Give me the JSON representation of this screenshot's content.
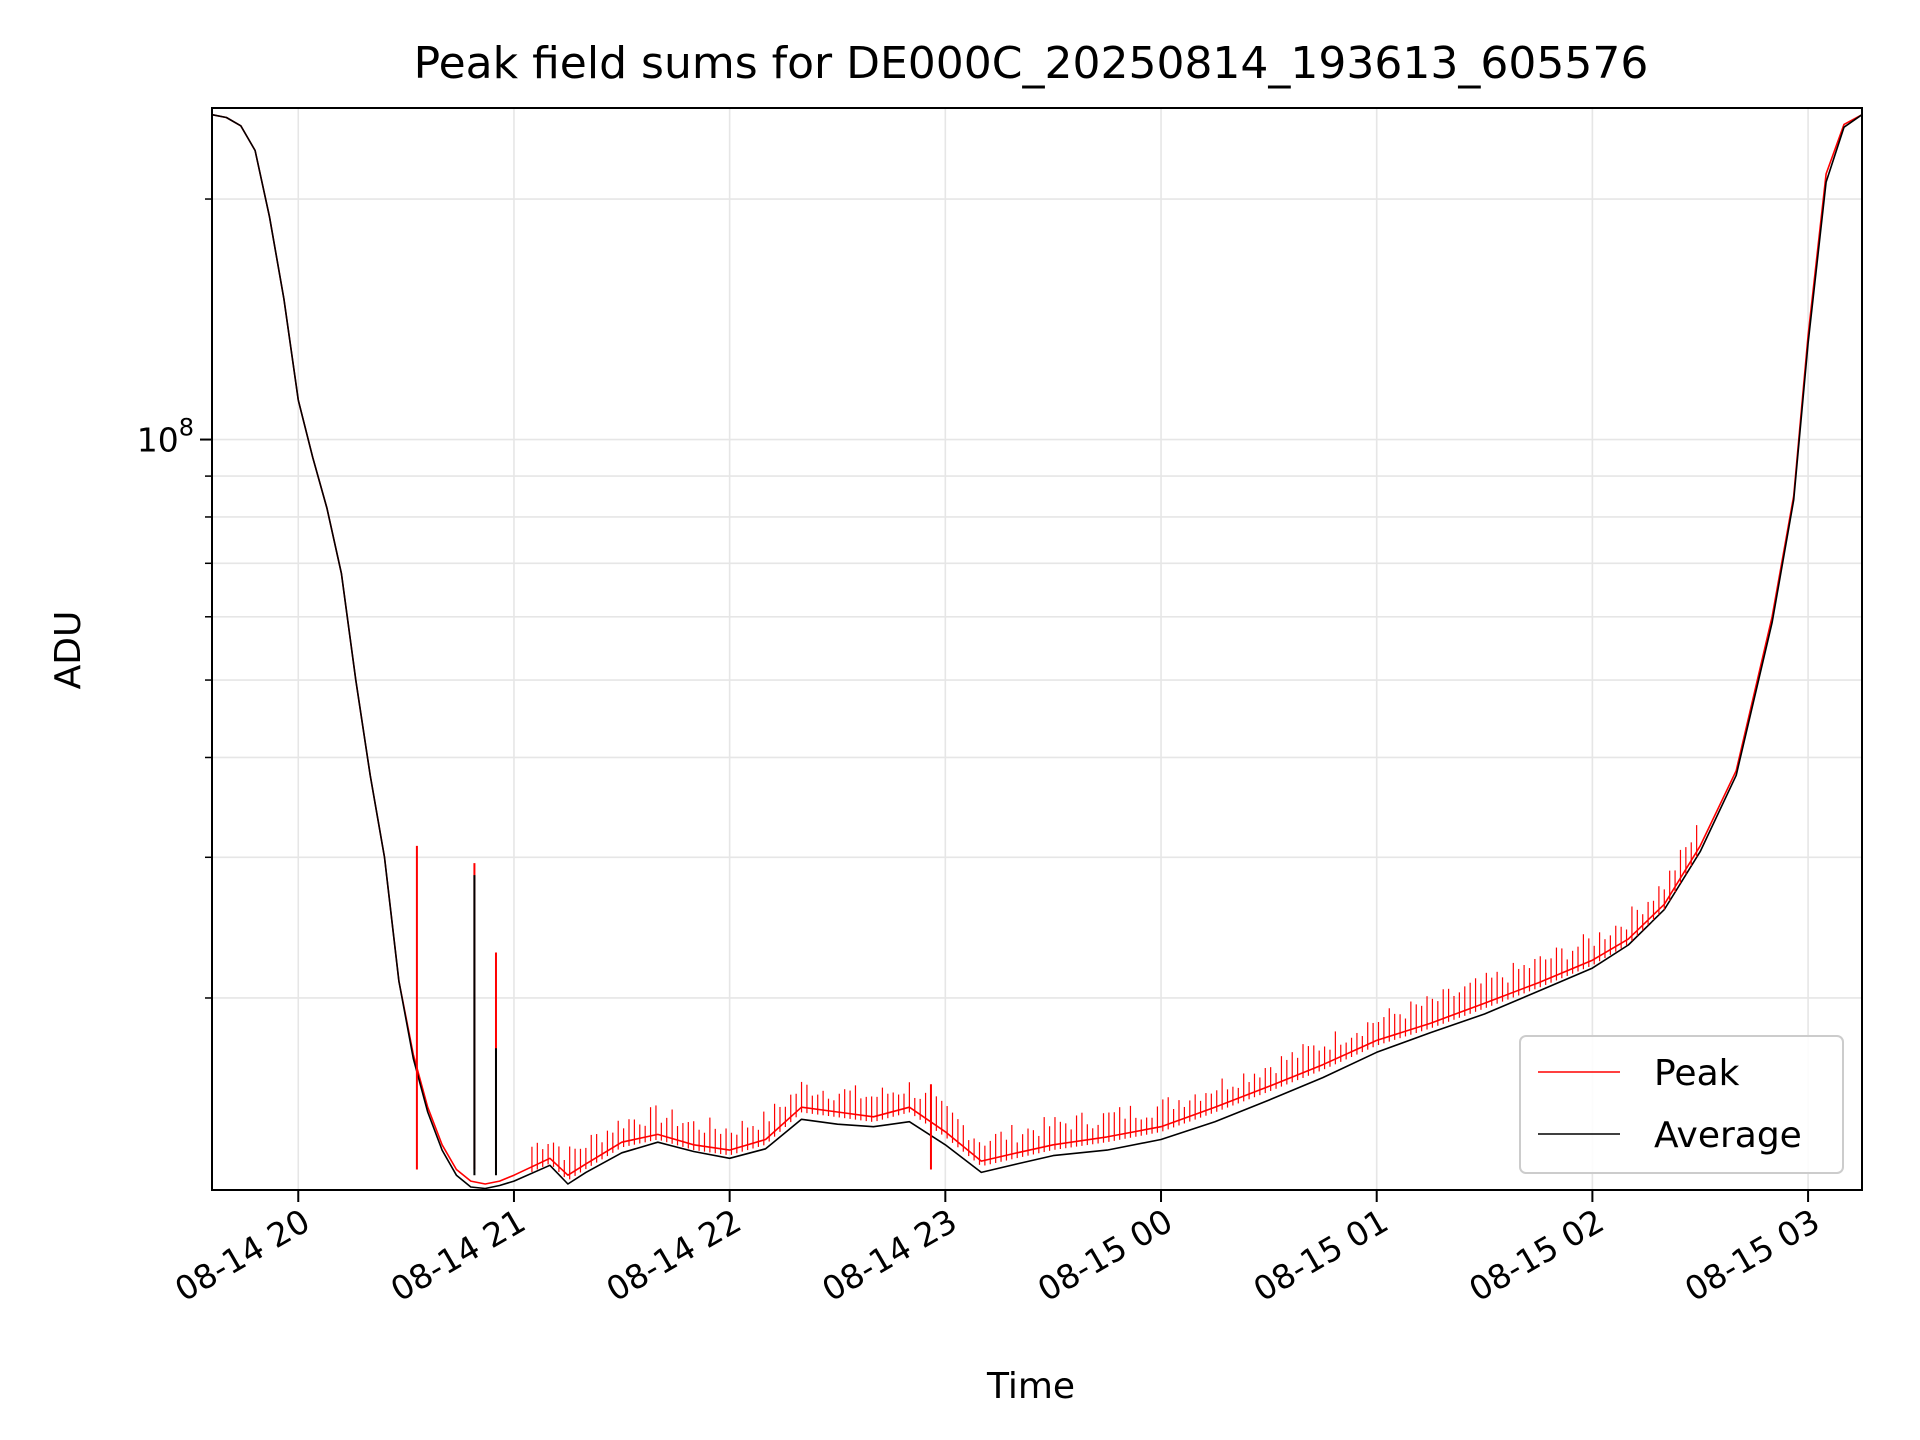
{
  "chart_data": {
    "type": "line",
    "title": "Peak field sums for DE000C_20250814_193613_605576",
    "xlabel": "Time",
    "ylabel": "ADU",
    "yscale": "log",
    "xlim": [
      "2025-08-14 19:36",
      "2025-08-15 03:15"
    ],
    "ylim": [
      11500000,
      260000000
    ],
    "x_ticks": [
      "08-14 20",
      "08-14 21",
      "08-14 22",
      "08-14 23",
      "08-15 00",
      "08-15 01",
      "08-15 02",
      "08-15 03"
    ],
    "y_ticks_major": [
      {
        "value": 100000000,
        "base": "10",
        "exp": "8"
      }
    ],
    "y_ticks_minor": [
      20000000,
      30000000,
      40000000,
      50000000,
      60000000,
      70000000,
      80000000,
      90000000,
      200000000
    ],
    "grid": true,
    "legend_position": "lower right",
    "series": [
      {
        "name": "Peak",
        "color": "#ff0000",
        "x": [
          "2025-08-14 19:36",
          "2025-08-14 19:40",
          "2025-08-14 19:44",
          "2025-08-14 19:48",
          "2025-08-14 19:52",
          "2025-08-14 19:56",
          "2025-08-14 20:00",
          "2025-08-14 20:04",
          "2025-08-14 20:08",
          "2025-08-14 20:12",
          "2025-08-14 20:16",
          "2025-08-14 20:20",
          "2025-08-14 20:24",
          "2025-08-14 20:28",
          "2025-08-14 20:32",
          "2025-08-14 20:36",
          "2025-08-14 20:40",
          "2025-08-14 20:44",
          "2025-08-14 20:48",
          "2025-08-14 20:52",
          "2025-08-14 20:56",
          "2025-08-14 21:00",
          "2025-08-14 21:10",
          "2025-08-14 21:15",
          "2025-08-14 21:20",
          "2025-08-14 21:30",
          "2025-08-14 21:40",
          "2025-08-14 21:50",
          "2025-08-14 22:00",
          "2025-08-14 22:10",
          "2025-08-14 22:20",
          "2025-08-14 22:30",
          "2025-08-14 22:40",
          "2025-08-14 22:50",
          "2025-08-14 23:00",
          "2025-08-14 23:10",
          "2025-08-14 23:20",
          "2025-08-14 23:30",
          "2025-08-14 23:45",
          "2025-08-15 00:00",
          "2025-08-15 00:15",
          "2025-08-15 00:30",
          "2025-08-15 00:45",
          "2025-08-15 01:00",
          "2025-08-15 01:15",
          "2025-08-15 01:30",
          "2025-08-15 01:45",
          "2025-08-15 02:00",
          "2025-08-15 02:10",
          "2025-08-15 02:20",
          "2025-08-15 02:30",
          "2025-08-15 02:40",
          "2025-08-15 02:50",
          "2025-08-15 02:56",
          "2025-08-15 03:00",
          "2025-08-15 03:05",
          "2025-08-15 03:10",
          "2025-08-15 03:15"
        ],
        "y": [
          255000000,
          253000000,
          247000000,
          230000000,
          190000000,
          150000000,
          112000000,
          95000000,
          82000000,
          68000000,
          50000000,
          38000000,
          30000000,
          21000000,
          17000000,
          14600000,
          13100000,
          12200000,
          11800000,
          11700000,
          11800000,
          12000000,
          12600000,
          12000000,
          12400000,
          13200000,
          13500000,
          13100000,
          12900000,
          13300000,
          14600000,
          14400000,
          14200000,
          14600000,
          13600000,
          12500000,
          12800000,
          13100000,
          13400000,
          13800000,
          14600000,
          15500000,
          16500000,
          17700000,
          18600000,
          19700000,
          20900000,
          22300000,
          23700000,
          26200000,
          31000000,
          38500000,
          60000000,
          85000000,
          135000000,
          215000000,
          248000000,
          255000000
        ]
      },
      {
        "name": "Average",
        "color": "#000000",
        "x": [
          "2025-08-14 19:36",
          "2025-08-14 19:40",
          "2025-08-14 19:44",
          "2025-08-14 19:48",
          "2025-08-14 19:52",
          "2025-08-14 19:56",
          "2025-08-14 20:00",
          "2025-08-14 20:04",
          "2025-08-14 20:08",
          "2025-08-14 20:12",
          "2025-08-14 20:16",
          "2025-08-14 20:20",
          "2025-08-14 20:24",
          "2025-08-14 20:28",
          "2025-08-14 20:32",
          "2025-08-14 20:36",
          "2025-08-14 20:40",
          "2025-08-14 20:44",
          "2025-08-14 20:48",
          "2025-08-14 20:52",
          "2025-08-14 20:56",
          "2025-08-14 21:00",
          "2025-08-14 21:10",
          "2025-08-14 21:15",
          "2025-08-14 21:20",
          "2025-08-14 21:30",
          "2025-08-14 21:40",
          "2025-08-14 21:50",
          "2025-08-14 22:00",
          "2025-08-14 22:10",
          "2025-08-14 22:20",
          "2025-08-14 22:30",
          "2025-08-14 22:40",
          "2025-08-14 22:50",
          "2025-08-14 23:00",
          "2025-08-14 23:10",
          "2025-08-14 23:20",
          "2025-08-14 23:30",
          "2025-08-14 23:45",
          "2025-08-15 00:00",
          "2025-08-15 00:15",
          "2025-08-15 00:30",
          "2025-08-15 00:45",
          "2025-08-15 01:00",
          "2025-08-15 01:15",
          "2025-08-15 01:30",
          "2025-08-15 01:45",
          "2025-08-15 02:00",
          "2025-08-15 02:10",
          "2025-08-15 02:20",
          "2025-08-15 02:30",
          "2025-08-15 02:40",
          "2025-08-15 02:50",
          "2025-08-15 02:56",
          "2025-08-15 03:00",
          "2025-08-15 03:05",
          "2025-08-15 03:10",
          "2025-08-15 03:15"
        ],
        "y": [
          255000000,
          253000000,
          247000000,
          230000000,
          190000000,
          150000000,
          112000000,
          95000000,
          82000000,
          68000000,
          50000000,
          38000000,
          30000000,
          21000000,
          16800000,
          14400000,
          12900000,
          12000000,
          11600000,
          11550000,
          11650000,
          11800000,
          12350000,
          11700000,
          12100000,
          12800000,
          13200000,
          12850000,
          12600000,
          12950000,
          14100000,
          13900000,
          13800000,
          14000000,
          13100000,
          12100000,
          12400000,
          12700000,
          12900000,
          13300000,
          14000000,
          14900000,
          15900000,
          17100000,
          18100000,
          19100000,
          20400000,
          21800000,
          23300000,
          25800000,
          30500000,
          38000000,
          59000000,
          84000000,
          132000000,
          210000000,
          246000000,
          255000000
        ]
      }
    ],
    "spikes": [
      {
        "series": "Peak",
        "x": "2025-08-14 20:33",
        "y": 31000000
      },
      {
        "series": "Peak",
        "x": "2025-08-14 20:49",
        "y": 29500000
      },
      {
        "series": "Peak",
        "x": "2025-08-14 20:55",
        "y": 22800000
      },
      {
        "series": "Average",
        "x": "2025-08-14 20:49",
        "y": 28500000
      },
      {
        "series": "Average",
        "x": "2025-08-14 20:55",
        "y": 17300000
      },
      {
        "series": "Peak",
        "x": "2025-08-14 22:56",
        "y": 15600000
      }
    ]
  }
}
